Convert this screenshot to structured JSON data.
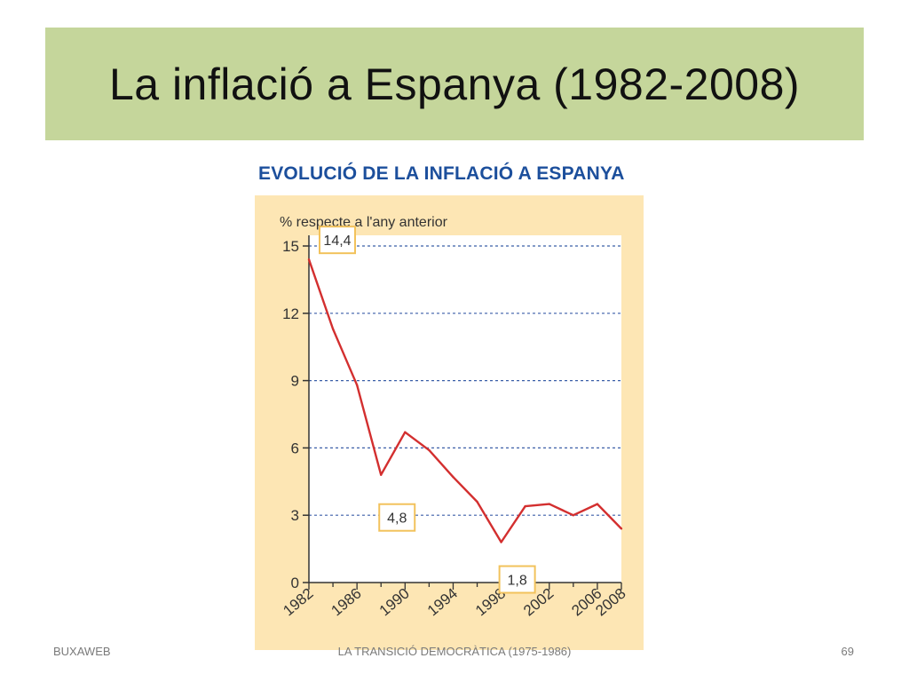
{
  "slide": {
    "title": "La inflació a Espanya (1982-2008)",
    "footer_left": "BUXAWEB",
    "footer_center": "LA TRANSICIÓ DEMOCRÀTICA (1975-1986)",
    "page_number": "69"
  },
  "colors": {
    "title_bar": "#c5d69b",
    "heading": "#1c4f9c",
    "panel": "#fde6b4",
    "line": "#d32f2f",
    "grid": "#3b5fa8",
    "label_border": "#f2c25c"
  },
  "chart_data": {
    "type": "line",
    "title": "EVOLUCIÓ DE LA INFLACIÓ A ESPANYA",
    "ylabel": "% respecte a l'any anterior",
    "xlabel": "",
    "xlim": [
      1982,
      2008
    ],
    "ylim": [
      0,
      15
    ],
    "yticks": [
      0,
      3,
      6,
      9,
      12,
      15
    ],
    "xticks": [
      1982,
      1986,
      1990,
      1994,
      1998,
      2002,
      2006,
      2008
    ],
    "grid": true,
    "series": [
      {
        "x": [
          1982,
          1984,
          1986,
          1988,
          1990,
          1992,
          1994,
          1996,
          1998,
          2000,
          2002,
          2004,
          2006,
          2008
        ],
        "values": [
          14.4,
          11.3,
          8.8,
          4.8,
          6.7,
          5.9,
          4.7,
          3.6,
          1.8,
          3.4,
          3.5,
          3.0,
          3.5,
          2.4
        ]
      }
    ],
    "annotations": [
      {
        "x": 1982,
        "y": 14.4,
        "text": "14,4"
      },
      {
        "x": 1988,
        "y": 4.8,
        "text": "4,8"
      },
      {
        "x": 1998,
        "y": 1.8,
        "text": "1,8"
      }
    ]
  }
}
